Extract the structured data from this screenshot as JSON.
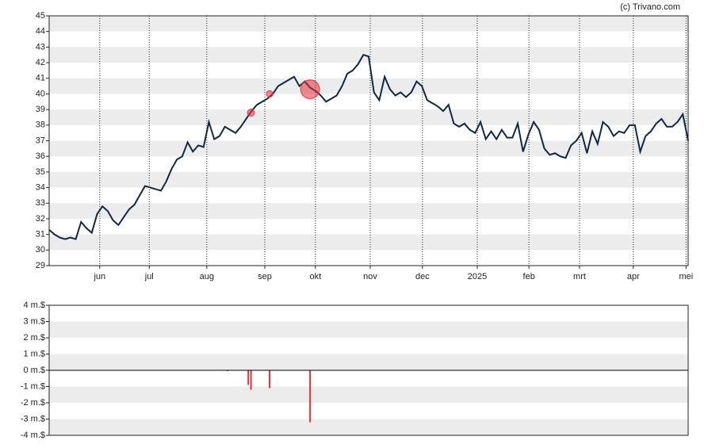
{
  "source": "(c) Trivano.com",
  "chart_data": [
    {
      "type": "line",
      "xlim": [
        0,
        120
      ],
      "xticks": [
        {
          "value": 9.5,
          "label": "jun"
        },
        {
          "value": 18.8,
          "label": "jul"
        },
        {
          "value": 29.6,
          "label": "aug"
        },
        {
          "value": 40.5,
          "label": "sep"
        },
        {
          "value": 50,
          "label": "okt"
        },
        {
          "value": 60.3,
          "label": "nov"
        },
        {
          "value": 70.1,
          "label": "dec"
        },
        {
          "value": 80.4,
          "label": "2025"
        },
        {
          "value": 90.1,
          "label": "feb"
        },
        {
          "value": 99.6,
          "label": "mrt"
        },
        {
          "value": 109.7,
          "label": "apr"
        },
        {
          "value": 119.6,
          "label": "mei"
        }
      ],
      "ylim": [
        29,
        45
      ],
      "yticks": [
        29,
        30,
        31,
        32,
        33,
        34,
        35,
        36,
        37,
        38,
        39,
        40,
        41,
        42,
        43,
        44,
        45
      ],
      "grid": true,
      "color": "#0d2a45",
      "values": [
        31.3,
        31.0,
        30.8,
        30.7,
        30.8,
        30.7,
        31.8,
        31.4,
        31.1,
        32.3,
        32.8,
        32.5,
        31.9,
        31.6,
        32.1,
        32.6,
        32.9,
        33.5,
        34.1,
        34.0,
        33.9,
        33.8,
        34.4,
        35.2,
        35.8,
        36.0,
        36.9,
        36.3,
        36.7,
        36.6,
        38.2,
        37.1,
        37.3,
        37.9,
        37.7,
        37.5,
        37.9,
        38.4,
        38.9,
        39.3,
        39.5,
        39.7,
        40.0,
        40.5,
        40.7,
        40.9,
        41.1,
        40.5,
        40.8,
        40.4,
        40.2,
        39.9,
        39.5,
        39.7,
        39.9,
        40.5,
        41.3,
        41.5,
        41.9,
        42.5,
        42.4,
        40.1,
        39.6,
        41.1,
        40.3,
        39.9,
        40.1,
        39.8,
        40.1,
        40.8,
        40.5,
        39.6,
        39.4,
        39.2,
        38.9,
        39.3,
        38.1,
        37.9,
        38.1,
        37.7,
        37.5,
        38.2,
        37.1,
        37.6,
        37.1,
        37.7,
        37.2,
        37.2,
        38.1,
        36.3,
        37.4,
        38.2,
        37.7,
        36.5,
        36.1,
        36.2,
        36.0,
        35.9,
        36.7,
        37.0,
        37.5,
        36.2,
        37.6,
        36.8,
        38.2,
        37.9,
        37.3,
        37.6,
        37.5,
        38.0,
        38.0,
        36.3,
        37.3,
        37.6,
        38.1,
        38.4,
        37.9,
        37.9,
        38.2,
        38.7,
        37.0
      ],
      "trades": {
        "color": "#e8303a",
        "x": [
          37.9,
          41.4,
          49.0
        ],
        "values": [
          38.8,
          40.0,
          40.3
        ],
        "sizes": [
          1.2,
          1.1,
          3.2
        ]
      }
    },
    {
      "type": "bar",
      "xlim": [
        0,
        120
      ],
      "ylim": [
        -4,
        4
      ],
      "yticks": [
        {
          "value": -4,
          "label": "-4 m.$"
        },
        {
          "value": -3,
          "label": "-3 m.$"
        },
        {
          "value": -2,
          "label": "-2 m.$"
        },
        {
          "value": -1,
          "label": "-1 m.$"
        },
        {
          "value": 0,
          "label": "0 m.$"
        },
        {
          "value": 1,
          "label": "1 m.$"
        },
        {
          "value": 2,
          "label": "2 m.$"
        },
        {
          "value": 3,
          "label": "3 m.$"
        },
        {
          "value": 4,
          "label": "4 m.$"
        }
      ],
      "grid": true,
      "color": "#e8303a",
      "x": [
        33.5,
        37.4,
        37.9,
        41.4,
        49.0
      ],
      "values": [
        -0.05,
        -0.9,
        -1.2,
        -1.1,
        -3.2
      ]
    }
  ]
}
